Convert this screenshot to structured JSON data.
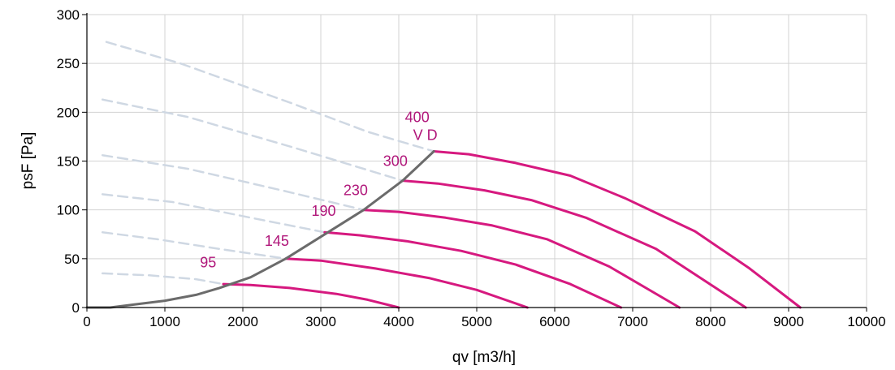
{
  "chart_data": {
    "type": "line",
    "title": "",
    "xlabel": "qv [m3/h]",
    "ylabel": "psF [Pa]",
    "xlim": [
      0,
      10000
    ],
    "ylim": [
      0,
      300
    ],
    "x_ticks": [
      "0",
      "1000",
      "2000",
      "3000",
      "4000",
      "5000",
      "6000",
      "7000",
      "8000",
      "9000",
      "10000"
    ],
    "y_ticks": [
      "0",
      "50",
      "100",
      "150",
      "200",
      "250",
      "300"
    ],
    "grid": true,
    "colors": {
      "curve": "#d6197f",
      "system": "#6b6b6b",
      "dashed": "#cfd8e3",
      "label": "#b0167a",
      "grid": "#d3d3d3"
    },
    "series": [
      {
        "label": "95",
        "values": [
          [
            1750,
            24
          ],
          [
            2100,
            23
          ],
          [
            2600,
            20
          ],
          [
            3200,
            14
          ],
          [
            3600,
            8
          ],
          [
            4000,
            0
          ]
        ]
      },
      {
        "label": "145",
        "values": [
          [
            2550,
            50
          ],
          [
            3000,
            48
          ],
          [
            3700,
            40
          ],
          [
            4400,
            30
          ],
          [
            5000,
            18
          ],
          [
            5650,
            0
          ]
        ]
      },
      {
        "label": "190",
        "values": [
          [
            3050,
            77
          ],
          [
            3500,
            74
          ],
          [
            4100,
            68
          ],
          [
            4800,
            58
          ],
          [
            5500,
            44
          ],
          [
            6200,
            24
          ],
          [
            6850,
            0
          ]
        ]
      },
      {
        "label": "230",
        "values": [
          [
            3550,
            100
          ],
          [
            4000,
            98
          ],
          [
            4600,
            92
          ],
          [
            5200,
            84
          ],
          [
            5900,
            70
          ],
          [
            6700,
            42
          ],
          [
            7600,
            0
          ]
        ]
      },
      {
        "label": "300",
        "values": [
          [
            4050,
            130
          ],
          [
            4500,
            127
          ],
          [
            5100,
            120
          ],
          [
            5700,
            110
          ],
          [
            6400,
            92
          ],
          [
            7300,
            60
          ],
          [
            8450,
            0
          ]
        ]
      },
      {
        "label": "400",
        "values": [
          [
            4450,
            160
          ],
          [
            4900,
            157
          ],
          [
            5500,
            148
          ],
          [
            6200,
            135
          ],
          [
            6900,
            112
          ],
          [
            7800,
            78
          ],
          [
            8500,
            40
          ],
          [
            9150,
            0
          ]
        ]
      }
    ],
    "system_curve": [
      [
        0,
        0
      ],
      [
        300,
        0
      ],
      [
        600,
        3
      ],
      [
        1000,
        7
      ],
      [
        1400,
        13
      ],
      [
        1700,
        20
      ],
      [
        2100,
        31
      ],
      [
        2550,
        50
      ],
      [
        3050,
        75
      ],
      [
        3550,
        100
      ],
      [
        4050,
        130
      ],
      [
        4450,
        160
      ]
    ],
    "dashed_curves": [
      [
        [
          200,
          35
        ],
        [
          800,
          33
        ],
        [
          1400,
          29
        ],
        [
          1750,
          24
        ]
      ],
      [
        [
          200,
          77
        ],
        [
          900,
          70
        ],
        [
          1700,
          60
        ],
        [
          2550,
          50
        ]
      ],
      [
        [
          200,
          116
        ],
        [
          1100,
          108
        ],
        [
          2100,
          92
        ],
        [
          3050,
          77
        ]
      ],
      [
        [
          200,
          156
        ],
        [
          1300,
          142
        ],
        [
          2500,
          120
        ],
        [
          3550,
          100
        ]
      ],
      [
        [
          200,
          213
        ],
        [
          1300,
          195
        ],
        [
          2600,
          165
        ],
        [
          4050,
          130
        ]
      ],
      [
        [
          250,
          272
        ],
        [
          1200,
          250
        ],
        [
          2600,
          210
        ],
        [
          3600,
          180
        ],
        [
          4450,
          160
        ]
      ]
    ],
    "label_points": [
      [
        1450,
        41
      ],
      [
        2280,
        63
      ],
      [
        2880,
        94
      ],
      [
        3290,
        115
      ],
      [
        3800,
        145
      ],
      [
        4080,
        190
      ]
    ],
    "extra_label": "V D"
  }
}
